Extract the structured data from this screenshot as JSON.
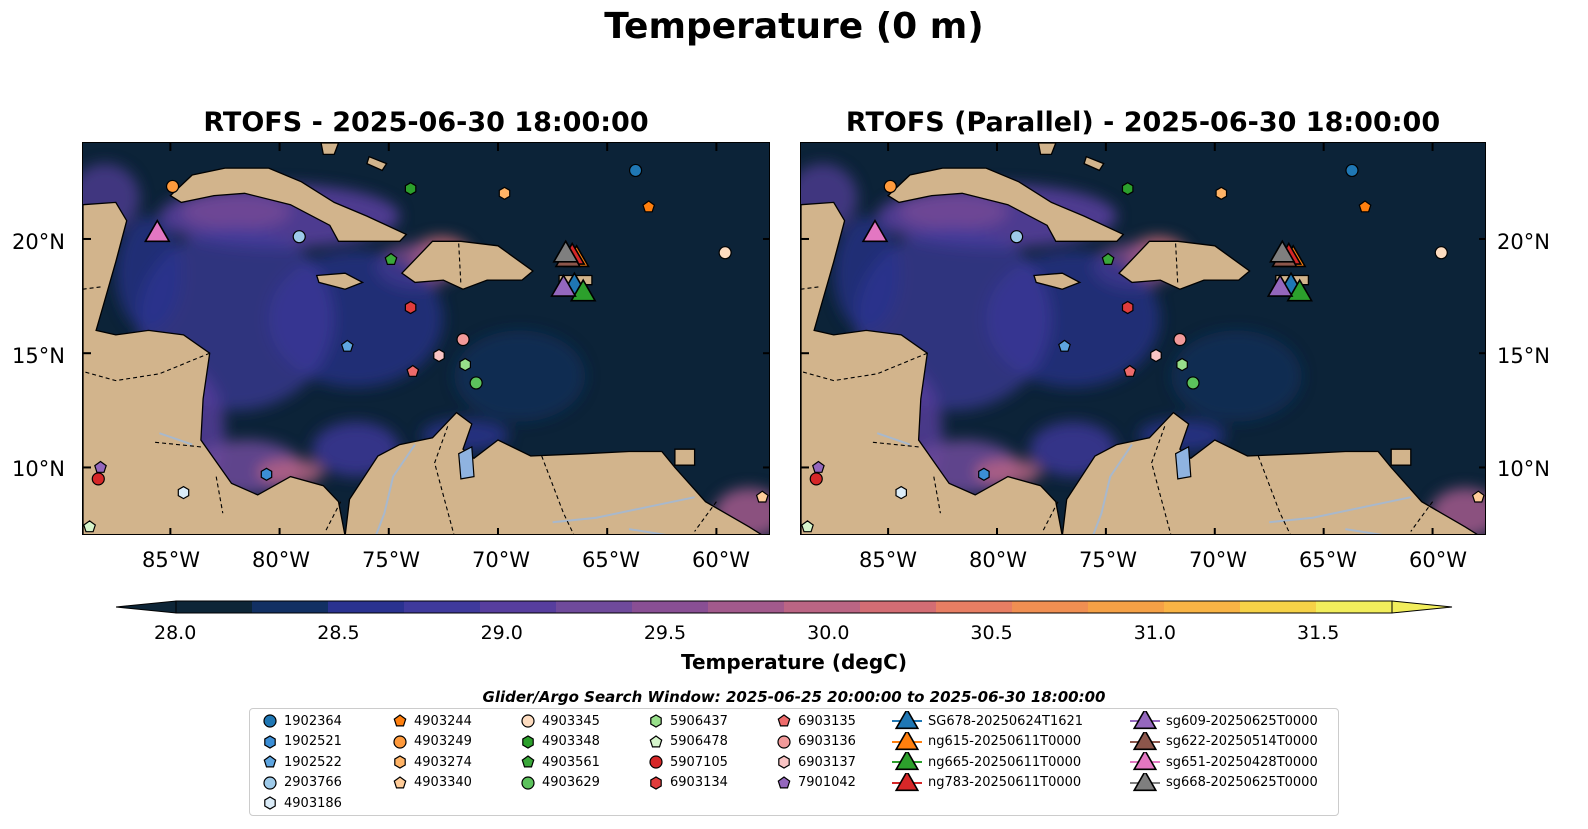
{
  "figure": {
    "title": "Temperature (0 m)"
  },
  "panels": [
    {
      "title": "RTOFS - 2025-06-30 18:00:00"
    },
    {
      "title": "RTOFS (Parallel) - 2025-06-30 18:00:00"
    }
  ],
  "map": {
    "lon_range": [
      -89.0,
      -57.5
    ],
    "lat_range": [
      7.0,
      24.2
    ],
    "lon_ticks": [
      "85°W",
      "80°W",
      "75°W",
      "70°W",
      "65°W",
      "60°W"
    ],
    "lat_ticks": [
      "10°N",
      "15°N",
      "20°N"
    ],
    "colors": {
      "ocean": "#0c2338",
      "land": "#d2b48c",
      "rivers": "#a8b8cc",
      "coast": "#000000"
    }
  },
  "colorbar": {
    "label": "Temperature (degC)",
    "min": 28.0,
    "max": 31.5,
    "ticks": [
      "28.0",
      "28.5",
      "29.0",
      "29.5",
      "30.0",
      "30.5",
      "31.0",
      "31.5"
    ],
    "colors": [
      "#0d2537",
      "#123063",
      "#2a3290",
      "#3f3a9c",
      "#573e9e",
      "#6f4a9b",
      "#894f94",
      "#a25a8c",
      "#bb6584",
      "#d36d74",
      "#e77e63",
      "#f08f52",
      "#f5a146",
      "#f9b445",
      "#f6d247",
      "#f2ee5c"
    ]
  },
  "legend": {
    "title": "Glider/Argo Search Window: 2025-06-25 20:00:00 to 2025-06-30 18:00:00",
    "items": [
      {
        "label": "1902364",
        "marker": "circle",
        "color": "#1f77b4"
      },
      {
        "label": "1902521",
        "marker": "hexagon",
        "color": "#3b8ed6"
      },
      {
        "label": "1902522",
        "marker": "pentagon",
        "color": "#5ea5e0"
      },
      {
        "label": "2903766",
        "marker": "circle",
        "color": "#9ecae9"
      },
      {
        "label": "4903186",
        "marker": "hexagon",
        "color": "#dbecf8"
      },
      {
        "label": "4903244",
        "marker": "pentagon",
        "color": "#ff7f0e"
      },
      {
        "label": "4903249",
        "marker": "circle",
        "color": "#ff9a3c"
      },
      {
        "label": "4903274",
        "marker": "hexagon",
        "color": "#ffb366"
      },
      {
        "label": "4903340",
        "marker": "pentagon",
        "color": "#ffcc99"
      },
      {
        "label": "4903345",
        "marker": "circle",
        "color": "#fddcc0"
      },
      {
        "label": "4903348",
        "marker": "hexagon",
        "color": "#2ca02c"
      },
      {
        "label": "4903561",
        "marker": "pentagon",
        "color": "#3aa83a"
      },
      {
        "label": "4903629",
        "marker": "circle",
        "color": "#5cc25c"
      },
      {
        "label": "5906437",
        "marker": "hexagon",
        "color": "#98df8a"
      },
      {
        "label": "5906478",
        "marker": "pentagon",
        "color": "#d6f5cc"
      },
      {
        "label": "5907105",
        "marker": "circle",
        "color": "#d62728"
      },
      {
        "label": "6903134",
        "marker": "hexagon",
        "color": "#e03c3c"
      },
      {
        "label": "6903135",
        "marker": "pentagon",
        "color": "#ee6b6b"
      },
      {
        "label": "6903136",
        "marker": "circle",
        "color": "#f29a9a"
      },
      {
        "label": "6903137",
        "marker": "hexagon",
        "color": "#f9c4c4"
      },
      {
        "label": "7901042",
        "marker": "pentagon",
        "color": "#9467bd"
      },
      {
        "label": "SG678-20250624T1621",
        "marker": "triangle",
        "color": "#1f77b4"
      },
      {
        "label": "ng615-20250611T0000",
        "marker": "triangle",
        "color": "#ff7f0e"
      },
      {
        "label": "ng665-20250611T0000",
        "marker": "triangle",
        "color": "#2ca02c"
      },
      {
        "label": "ng783-20250611T0000",
        "marker": "triangle",
        "color": "#d62728"
      },
      {
        "label": "sg609-20250625T0000",
        "marker": "triangle",
        "color": "#9467bd"
      },
      {
        "label": "sg622-20250514T0000",
        "marker": "triangle",
        "color": "#8c564b"
      },
      {
        "label": "sg651-20250428T0000",
        "marker": "triangle",
        "color": "#e377c2"
      },
      {
        "label": "sg668-20250625T0000",
        "marker": "triangle",
        "color": "#7f7f7f"
      }
    ]
  },
  "observations": [
    {
      "label": "1902364",
      "lon": -63.7,
      "lat": 23.0
    },
    {
      "label": "1902521",
      "lon": -80.6,
      "lat": 9.7
    },
    {
      "label": "1902522",
      "lon": -76.9,
      "lat": 15.3
    },
    {
      "label": "2903766",
      "lon": -79.1,
      "lat": 20.1
    },
    {
      "label": "4903186",
      "lon": -84.4,
      "lat": 8.9
    },
    {
      "label": "4903244",
      "lon": -63.1,
      "lat": 21.4
    },
    {
      "label": "4903249",
      "lon": -84.9,
      "lat": 22.3
    },
    {
      "label": "4903274",
      "lon": -69.7,
      "lat": 22.0
    },
    {
      "label": "4903340",
      "lon": -57.9,
      "lat": 8.7
    },
    {
      "label": "4903345",
      "lon": -59.6,
      "lat": 19.4
    },
    {
      "label": "4903348",
      "lon": -74.0,
      "lat": 22.2
    },
    {
      "label": "4903561",
      "lon": -74.9,
      "lat": 19.1
    },
    {
      "label": "4903629",
      "lon": -71.0,
      "lat": 13.7
    },
    {
      "label": "5906437",
      "lon": -71.5,
      "lat": 14.5
    },
    {
      "label": "5906478",
      "lon": -88.7,
      "lat": 7.4
    },
    {
      "label": "5907105",
      "lon": -88.3,
      "lat": 9.5
    },
    {
      "label": "6903134",
      "lon": -74.0,
      "lat": 17.0
    },
    {
      "label": "6903135",
      "lon": -73.9,
      "lat": 14.2
    },
    {
      "label": "6903136",
      "lon": -71.6,
      "lat": 15.6
    },
    {
      "label": "6903137",
      "lon": -72.7,
      "lat": 14.9
    },
    {
      "label": "7901042",
      "lon": -88.2,
      "lat": 10.0
    },
    {
      "label": "SG678-20250624T1621",
      "lon": -66.5,
      "lat": 17.9
    },
    {
      "label": "ng615-20250611T0000",
      "lon": -66.4,
      "lat": 19.1
    },
    {
      "label": "ng665-20250611T0000",
      "lon": -66.1,
      "lat": 17.6
    },
    {
      "label": "ng783-20250611T0000",
      "lon": -66.6,
      "lat": 19.2
    },
    {
      "label": "sg609-20250625T0000",
      "lon": -67.0,
      "lat": 17.8
    },
    {
      "label": "sg622-20250514T0000",
      "lon": -66.8,
      "lat": 19.1
    },
    {
      "label": "sg651-20250428T0000",
      "lon": -85.6,
      "lat": 20.2
    },
    {
      "label": "sg668-20250625T0000",
      "lon": -66.9,
      "lat": 19.3
    }
  ]
}
